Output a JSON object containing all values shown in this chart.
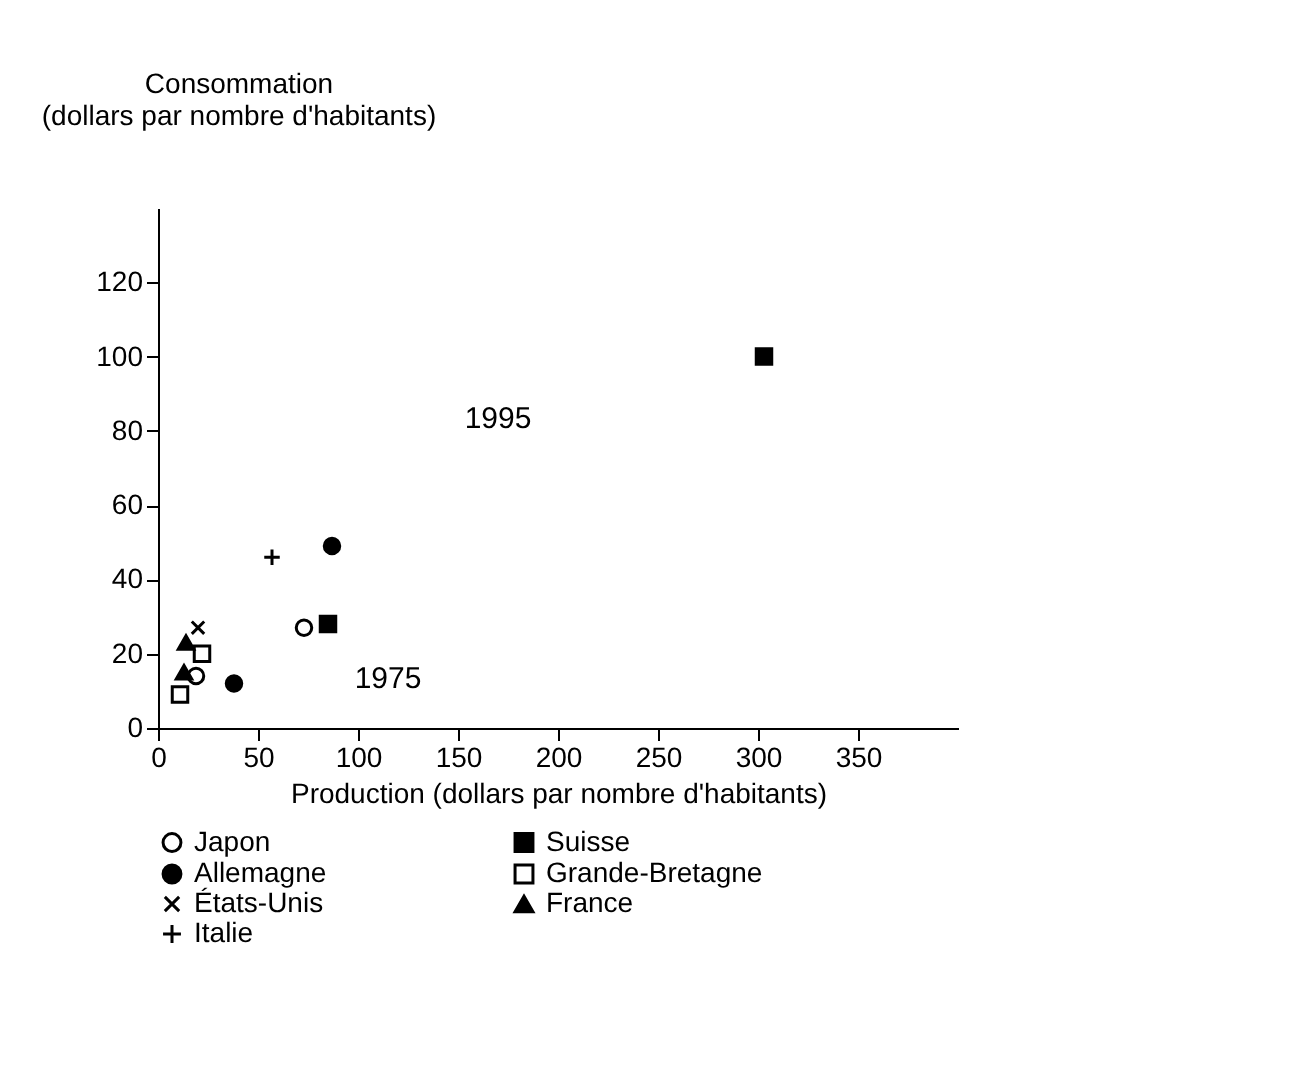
{
  "chart_data": {
    "type": "scatter",
    "xlabel": "Production (dollars par nombre d'habitants)",
    "ylabel": "Consommation\n(dollars par nombre d'habitants)",
    "xlim": [
      0,
      400
    ],
    "xticks": [
      0,
      50,
      100,
      150,
      200,
      250,
      300,
      350
    ],
    "ylim": [
      0,
      140
    ],
    "yticks": [
      0,
      20,
      40,
      60,
      80,
      100,
      120
    ],
    "grid": false,
    "legend": "bottom",
    "series": [
      {
        "name": "Japon",
        "color": "#ffffff",
        "marker": "circle",
        "x": [
          19,
          73
        ],
        "values": [
          14,
          27
        ]
      },
      {
        "name": "Allemagne",
        "color": "#000000",
        "marker": "circle",
        "x": [
          38,
          87
        ],
        "values": [
          12,
          49
        ]
      },
      {
        "name": "États-Unis",
        "color": "#000000",
        "marker": "x",
        "x": [
          20
        ],
        "values": [
          27
        ]
      },
      {
        "name": "Italie",
        "color": "#000000",
        "marker": "cross",
        "x": [
          57
        ],
        "values": [
          46
        ]
      },
      {
        "name": "Suisse",
        "color": "#000000",
        "marker": "square",
        "x": [
          85,
          303
        ],
        "values": [
          28,
          100
        ]
      },
      {
        "name": "Grande-Bretagne",
        "color": "#ffffff",
        "marker": "square",
        "x": [
          11,
          22
        ],
        "values": [
          9,
          20
        ]
      },
      {
        "name": "France",
        "color": "#000000",
        "marker": "triangle",
        "x": [
          13,
          14
        ],
        "values": [
          15,
          23
        ]
      }
    ],
    "annotations": [
      "1995",
      "1975"
    ]
  }
}
